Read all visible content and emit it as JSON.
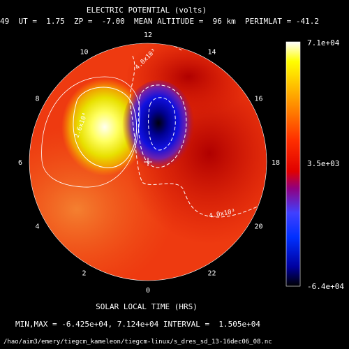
{
  "header": {
    "title": "ELECTRIC POTENTIAL (volts)",
    "params": "49  UT =  1.75  ZP =  -7.00  MEAN ALTITUDE =  96 km  PERIMLAT = -41.2"
  },
  "chart_data": {
    "type": "heatmap",
    "projection": "polar",
    "title": "ELECTRIC POTENTIAL (volts)",
    "xlabel": "SOLAR LOCAL TIME (HRS)",
    "local_time_ticks": [
      "12",
      "14",
      "16",
      "18",
      "20",
      "22",
      "0",
      "2",
      "4",
      "6",
      "8",
      "10"
    ],
    "colorbar": {
      "max_label": "7.1e+04",
      "mid_label": "3.5e+03",
      "min_label": "-6.4e+04",
      "min": -64250,
      "max": 71240
    },
    "contour_labels": [
      {
        "text": "2.6x10⁴",
        "level": 26000
      },
      {
        "text": "4.0x10³",
        "level": 4000
      },
      {
        "text": "4.0x10³",
        "level": 4000
      }
    ],
    "extrema": {
      "min": -64250,
      "max": 71240,
      "interval": 15050
    },
    "summary": "MIN,MAX = -6.425e+04, 7.124e+04 INTERVAL =  1.505e+04"
  },
  "footer": {
    "filepath": "/hao/aim3/emery/tiegcm_kameleon/tiegcm-linux/s_dres_sd_13-16dec06_08.nc"
  }
}
